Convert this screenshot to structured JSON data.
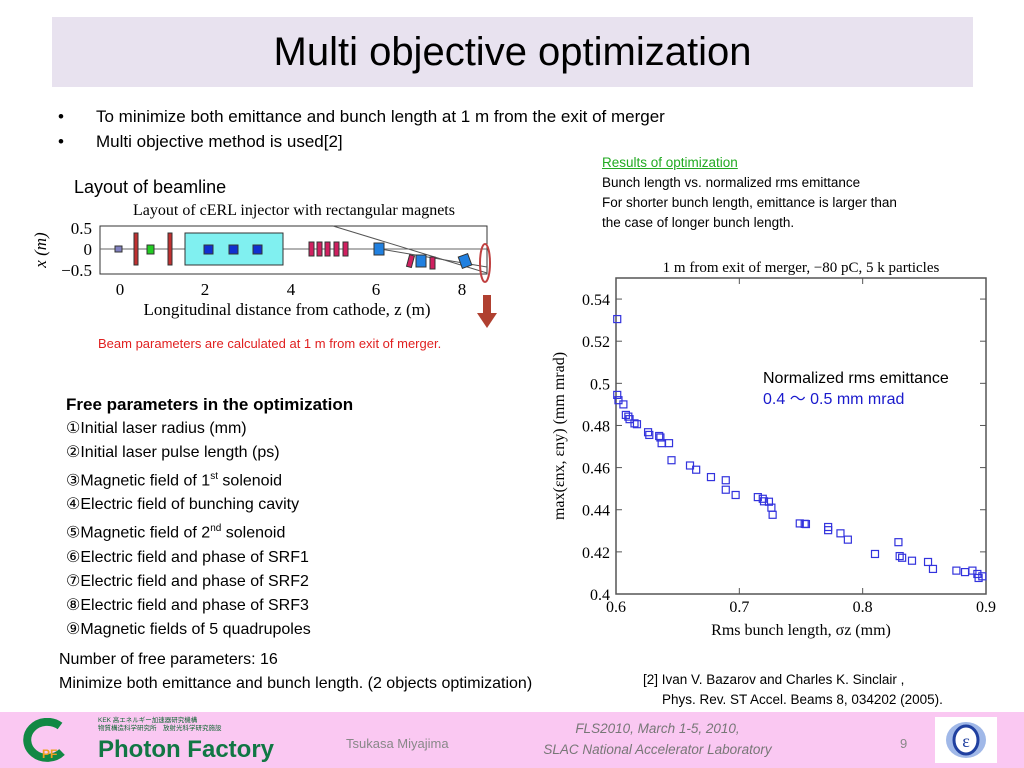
{
  "title": "Multi objective optimization",
  "bullets": [
    "To minimize both emittance and bunch length at 1 m from the exit of merger",
    "Multi objective method is used[2]"
  ],
  "layout_label": "Layout of beamline",
  "beamline": {
    "title": "Layout of cERL injector with rectangular magnets",
    "ylabel": "x (m)",
    "xlabel": "Longitudinal distance from cathode, z (m)",
    "yticks": [
      "0.5",
      "0",
      "−0.5"
    ],
    "xticks": [
      "0",
      "2",
      "4",
      "6",
      "8"
    ]
  },
  "beam_note": "Beam parameters are calculated at 1 m from exit of merger.",
  "results": {
    "link": "Results of optimization",
    "lines": [
      "Bunch length vs. normalized rms emittance",
      "For shorter bunch length, emittance is larger than",
      "the case of longer bunch length."
    ]
  },
  "free_params": {
    "heading": "Free parameters in the optimization",
    "items": [
      {
        "num": "①",
        "text": "Initial laser radius (mm)"
      },
      {
        "num": "②",
        "text": "Initial laser pulse length (ps)"
      },
      {
        "num": "③",
        "text": "Magnetic field of 1",
        "sup": "st",
        "after": " solenoid"
      },
      {
        "num": "④",
        "text": "Electric field of bunching cavity"
      },
      {
        "num": "⑤",
        "text": "Magnetic field of 2",
        "sup": "nd",
        "after": " solenoid"
      },
      {
        "num": "⑥",
        "text": "Electric field and phase of SRF1"
      },
      {
        "num": "⑦",
        "text": "Electric field and phase of SRF2"
      },
      {
        "num": "⑧",
        "text": "Electric field and phase of SRF3"
      },
      {
        "num": "⑨",
        "text": "Magnetic fields of 5 quadrupoles"
      }
    ]
  },
  "summary": [
    "Number of free parameters: 16",
    "Minimize both emittance and bunch length. (2 objects optimization)"
  ],
  "reference": [
    "[2] Ivan V. Bazarov and Charles K. Sinclair ,",
    "Phys. Rev. ST Accel. Beams 8, 034202 (2005)."
  ],
  "annotation": {
    "line1": "Normalized rms emittance",
    "line2": "0.4 〜 0.5 mm mrad"
  },
  "footer": {
    "org_small_1": "KEK 高エネルギー加速器研究機構",
    "org_small_2": "物質構造科学研究所　放射光科学研究施設",
    "org": "Photon Factory",
    "author": "Tsukasa Miyajima",
    "conf1": "FLS2010, March 1-5, 2010,",
    "conf2": "SLAC National Accelerator Laboratory",
    "page": "9"
  },
  "colors": {
    "title_band": "#e8e2ef",
    "footer": "#fac8f2",
    "marker": "#3333dd",
    "note_red": "#e02020",
    "link_green": "#22aa22",
    "annot_blue": "#1a1acc"
  },
  "chart_data": {
    "type": "scatter",
    "title": "1 m from exit of merger, −80 pC, 5 k particles",
    "xlabel": "Rms bunch length, σz (mm)",
    "ylabel": "max(εnx, εny) (mm mrad)",
    "xlim": [
      0.6,
      0.9
    ],
    "ylim": [
      0.4,
      0.55
    ],
    "xticks": [
      0.6,
      0.7,
      0.8,
      0.9
    ],
    "yticks": [
      0.4,
      0.42,
      0.44,
      0.46,
      0.48,
      0.5,
      0.52,
      0.54
    ],
    "xtick_labels": [
      "0.6",
      "0.7",
      "0.8",
      "0.9"
    ],
    "ytick_labels": [
      "0.4",
      "0.42",
      "0.44",
      "0.46",
      "0.48",
      "0.5",
      "0.52",
      "0.54"
    ],
    "grid": false,
    "marker": "open-square",
    "points": [
      [
        0.601,
        0.5305
      ],
      [
        0.601,
        0.4945
      ],
      [
        0.602,
        0.492
      ],
      [
        0.606,
        0.49
      ],
      [
        0.608,
        0.485
      ],
      [
        0.61,
        0.4842
      ],
      [
        0.611,
        0.483
      ],
      [
        0.615,
        0.481
      ],
      [
        0.617,
        0.4806
      ],
      [
        0.626,
        0.4768
      ],
      [
        0.627,
        0.4755
      ],
      [
        0.635,
        0.475
      ],
      [
        0.636,
        0.4743
      ],
      [
        0.637,
        0.4716
      ],
      [
        0.643,
        0.4716
      ],
      [
        0.645,
        0.4635
      ],
      [
        0.66,
        0.461
      ],
      [
        0.665,
        0.459
      ],
      [
        0.677,
        0.4555
      ],
      [
        0.689,
        0.454
      ],
      [
        0.689,
        0.4495
      ],
      [
        0.697,
        0.447
      ],
      [
        0.715,
        0.446
      ],
      [
        0.719,
        0.4452
      ],
      [
        0.72,
        0.444
      ],
      [
        0.724,
        0.4438
      ],
      [
        0.726,
        0.441
      ],
      [
        0.727,
        0.4376
      ],
      [
        0.749,
        0.4335
      ],
      [
        0.753,
        0.4333
      ],
      [
        0.754,
        0.4332
      ],
      [
        0.772,
        0.4318
      ],
      [
        0.772,
        0.4303
      ],
      [
        0.782,
        0.4288
      ],
      [
        0.788,
        0.4258
      ],
      [
        0.81,
        0.419
      ],
      [
        0.829,
        0.4246
      ],
      [
        0.83,
        0.418
      ],
      [
        0.832,
        0.4172
      ],
      [
        0.84,
        0.4158
      ],
      [
        0.853,
        0.4152
      ],
      [
        0.857,
        0.4119
      ],
      [
        0.876,
        0.4111
      ],
      [
        0.883,
        0.4104
      ],
      [
        0.889,
        0.4111
      ],
      [
        0.893,
        0.4095
      ],
      [
        0.894,
        0.4076
      ],
      [
        0.897,
        0.4084
      ]
    ]
  }
}
